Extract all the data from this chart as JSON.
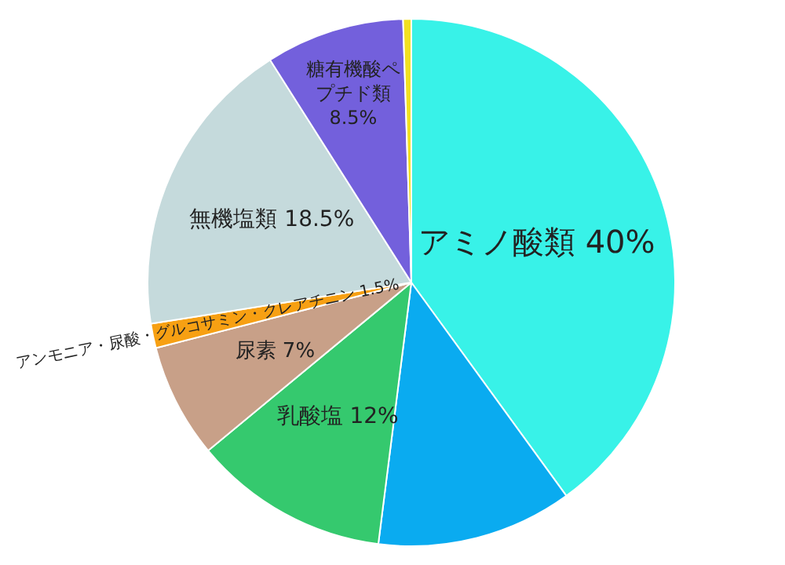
{
  "chart_data": {
    "type": "pie",
    "categories": [
      "アミノ酸類",
      null,
      "乳酸塩",
      "尿素",
      "アンモニア・尿酸・グルコサミン・クレアチニン",
      "無機塩類",
      "糖有機酸ペプチド類",
      null
    ],
    "values": [
      40,
      12,
      12,
      7,
      1.5,
      18.5,
      8.5,
      0.5
    ],
    "value_labels": [
      "40%",
      null,
      "12%",
      "7%",
      "1.5%",
      "18.5%",
      "8.5%",
      null
    ],
    "colors": [
      "#38f2e8",
      "#0aabf0",
      "#35c96e",
      "#c8a088",
      "#f7a013",
      "#c5dadc",
      "#7360dc",
      "#f2e020"
    ]
  }
}
